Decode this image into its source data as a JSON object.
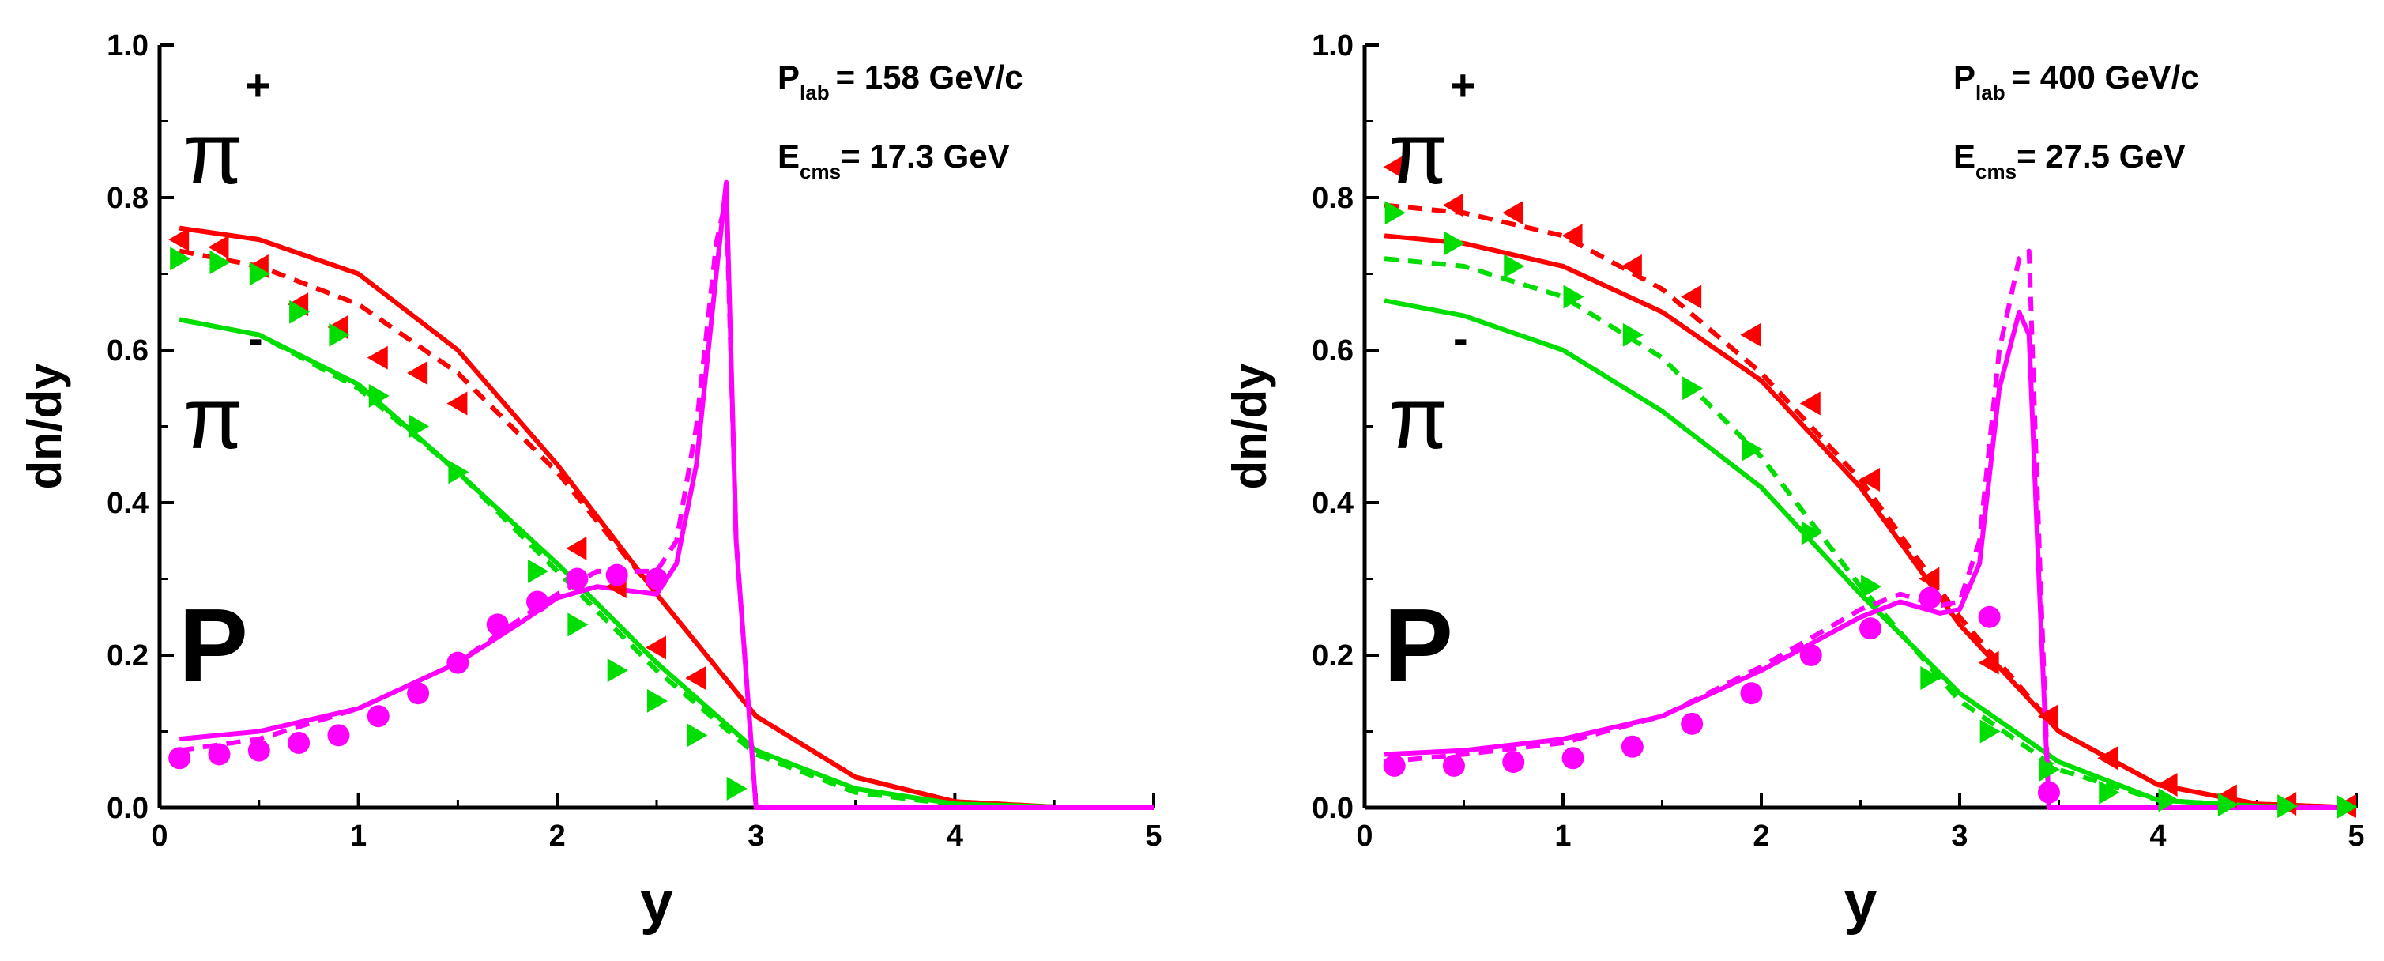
{
  "chart_data": [
    {
      "type": "line",
      "xlabel": "y",
      "ylabel": "dn/dy",
      "xlim": [
        0,
        5
      ],
      "ylim": [
        0,
        1.0
      ],
      "xticks": [
        "0",
        "1",
        "2",
        "3",
        "4",
        "5"
      ],
      "yticks": [
        "0.0",
        "0.2",
        "0.4",
        "0.6",
        "0.8",
        "1.0"
      ],
      "annotation": {
        "p_main": "P",
        "p_sub": "lab",
        "p_value": "= 158 GeV/c",
        "e_main": "E",
        "e_sub": "cms",
        "e_value": "= 17.3 GeV"
      },
      "labels": {
        "pi": "π",
        "plus": "+",
        "minus": "-",
        "proton": "P"
      },
      "series": [
        {
          "name": "π+ model (solid)",
          "color": "#ff0000",
          "style": "solid",
          "x": [
            0.1,
            0.5,
            1.0,
            1.5,
            2.0,
            2.5,
            3.0,
            3.5,
            4.0,
            4.5,
            5.0
          ],
          "y": [
            0.76,
            0.745,
            0.7,
            0.6,
            0.45,
            0.28,
            0.12,
            0.04,
            0.008,
            0.001,
            0.0
          ]
        },
        {
          "name": "π+ model (dashed)",
          "color": "#ff0000",
          "style": "dashed",
          "x": [
            0.1,
            0.5,
            1.0,
            1.5,
            2.0,
            2.5,
            3.0,
            3.5,
            4.0,
            4.5,
            5.0
          ],
          "y": [
            0.73,
            0.71,
            0.66,
            0.57,
            0.44,
            0.28,
            0.12,
            0.04,
            0.008,
            0.001,
            0.0
          ]
        },
        {
          "name": "π- model (solid)",
          "color": "#00dd00",
          "style": "solid",
          "x": [
            0.1,
            0.5,
            1.0,
            1.5,
            2.0,
            2.5,
            3.0,
            3.5,
            4.0,
            4.5,
            5.0
          ],
          "y": [
            0.64,
            0.62,
            0.555,
            0.44,
            0.32,
            0.19,
            0.075,
            0.025,
            0.005,
            0.001,
            0.0
          ]
        },
        {
          "name": "π- model (dashed)",
          "color": "#00dd00",
          "style": "dashed",
          "x": [
            0.1,
            0.5,
            1.0,
            1.5,
            2.0,
            2.5,
            3.0,
            3.5,
            4.0,
            4.5,
            5.0
          ],
          "y": [
            0.64,
            0.62,
            0.55,
            0.44,
            0.31,
            0.18,
            0.07,
            0.02,
            0.004,
            0.001,
            0.0
          ]
        },
        {
          "name": "P model (solid)",
          "color": "#ff00ff",
          "style": "solid",
          "x": [
            0.1,
            0.5,
            1.0,
            1.5,
            1.8,
            2.0,
            2.2,
            2.5,
            2.6,
            2.7,
            2.8,
            2.85,
            2.9,
            3.0,
            3.5,
            4.0,
            5.0
          ],
          "y": [
            0.09,
            0.1,
            0.13,
            0.19,
            0.24,
            0.275,
            0.29,
            0.28,
            0.32,
            0.45,
            0.7,
            0.82,
            0.35,
            0.0,
            0.0,
            0.0,
            0.0
          ]
        },
        {
          "name": "P model (dashed)",
          "color": "#ff00ff",
          "style": "dashed",
          "x": [
            0.1,
            0.5,
            1.0,
            1.5,
            1.8,
            2.0,
            2.2,
            2.5,
            2.6,
            2.7,
            2.8,
            2.85,
            2.9,
            3.0,
            3.5,
            4.0,
            5.0
          ],
          "y": [
            0.075,
            0.09,
            0.13,
            0.19,
            0.245,
            0.28,
            0.31,
            0.31,
            0.35,
            0.5,
            0.74,
            0.8,
            0.35,
            0.0,
            0.0,
            0.0,
            0.0
          ]
        },
        {
          "name": "π+ data",
          "color": "#ff0000",
          "marker": "triangle-left",
          "x": [
            0.1,
            0.3,
            0.5,
            0.7,
            0.9,
            1.1,
            1.3,
            1.5,
            2.1,
            2.3,
            2.5,
            2.7
          ],
          "y": [
            0.745,
            0.735,
            0.71,
            0.66,
            0.63,
            0.59,
            0.57,
            0.53,
            0.34,
            0.29,
            0.21,
            0.17
          ]
        },
        {
          "name": "π- data",
          "color": "#00dd00",
          "marker": "triangle-right",
          "x": [
            0.1,
            0.3,
            0.5,
            0.7,
            0.9,
            1.1,
            1.3,
            1.5,
            1.9,
            2.1,
            2.3,
            2.5,
            2.7,
            2.9
          ],
          "y": [
            0.72,
            0.715,
            0.7,
            0.65,
            0.62,
            0.54,
            0.5,
            0.44,
            0.31,
            0.24,
            0.18,
            0.14,
            0.095,
            0.025
          ]
        },
        {
          "name": "P data",
          "color": "#ff00ff",
          "marker": "circle",
          "x": [
            0.1,
            0.3,
            0.5,
            0.7,
            0.9,
            1.1,
            1.3,
            1.5,
            1.7,
            1.9,
            2.1,
            2.3,
            2.5
          ],
          "y": [
            0.065,
            0.07,
            0.075,
            0.085,
            0.095,
            0.12,
            0.15,
            0.19,
            0.24,
            0.27,
            0.3,
            0.305,
            0.3
          ]
        }
      ]
    },
    {
      "type": "line",
      "xlabel": "y",
      "ylabel": "dn/dy",
      "xlim": [
        0,
        5
      ],
      "ylim": [
        0,
        1.0
      ],
      "xticks": [
        "0",
        "1",
        "2",
        "3",
        "4",
        "5"
      ],
      "yticks": [
        "0.0",
        "0.2",
        "0.4",
        "0.6",
        "0.8",
        "1.0"
      ],
      "annotation": {
        "p_main": "P",
        "p_sub": "lab",
        "p_value": "= 400 GeV/c",
        "e_main": "E",
        "e_sub": "cms",
        "e_value": "= 27.5 GeV"
      },
      "labels": {
        "pi": "π",
        "plus": "+",
        "minus": "-",
        "proton": "P"
      },
      "series": [
        {
          "name": "π+ model (solid)",
          "color": "#ff0000",
          "style": "solid",
          "x": [
            0.1,
            0.5,
            1.0,
            1.5,
            2.0,
            2.5,
            3.0,
            3.5,
            4.0,
            4.5,
            5.0
          ],
          "y": [
            0.75,
            0.74,
            0.71,
            0.65,
            0.56,
            0.42,
            0.24,
            0.1,
            0.03,
            0.005,
            0.0
          ]
        },
        {
          "name": "π+ model (dashed)",
          "color": "#ff0000",
          "style": "dashed",
          "x": [
            0.1,
            0.5,
            1.0,
            1.5,
            2.0,
            2.5,
            3.0,
            3.5,
            4.0,
            4.5,
            5.0
          ],
          "y": [
            0.79,
            0.78,
            0.75,
            0.68,
            0.57,
            0.43,
            0.25,
            0.1,
            0.03,
            0.005,
            0.0
          ]
        },
        {
          "name": "π- model (solid)",
          "color": "#00dd00",
          "style": "solid",
          "x": [
            0.1,
            0.5,
            1.0,
            1.5,
            2.0,
            2.5,
            3.0,
            3.5,
            4.0,
            4.5,
            5.0
          ],
          "y": [
            0.665,
            0.645,
            0.6,
            0.52,
            0.42,
            0.28,
            0.15,
            0.06,
            0.01,
            0.002,
            0.0
          ]
        },
        {
          "name": "π- model (dashed)",
          "color": "#00dd00",
          "style": "dashed",
          "x": [
            0.1,
            0.5,
            1.0,
            1.5,
            2.0,
            2.5,
            3.0,
            3.5,
            4.0,
            4.5,
            5.0
          ],
          "y": [
            0.72,
            0.71,
            0.67,
            0.59,
            0.46,
            0.29,
            0.14,
            0.05,
            0.01,
            0.002,
            0.0
          ]
        },
        {
          "name": "P model (solid)",
          "color": "#ff00ff",
          "style": "solid",
          "x": [
            0.1,
            0.5,
            1.0,
            1.5,
            2.0,
            2.5,
            2.7,
            2.9,
            3.0,
            3.1,
            3.2,
            3.3,
            3.35,
            3.4,
            3.45,
            3.5,
            4.0,
            5.0
          ],
          "y": [
            0.07,
            0.075,
            0.09,
            0.12,
            0.18,
            0.25,
            0.27,
            0.255,
            0.26,
            0.32,
            0.55,
            0.65,
            0.62,
            0.3,
            0.0,
            0.0,
            0.0,
            0.0
          ]
        },
        {
          "name": "P model (dashed)",
          "color": "#ff00ff",
          "style": "dashed",
          "x": [
            0.1,
            0.5,
            1.0,
            1.5,
            2.0,
            2.5,
            2.7,
            2.9,
            3.0,
            3.1,
            3.2,
            3.3,
            3.35,
            3.4,
            3.45,
            3.5,
            4.0,
            5.0
          ],
          "y": [
            0.06,
            0.07,
            0.085,
            0.12,
            0.185,
            0.26,
            0.28,
            0.265,
            0.27,
            0.35,
            0.6,
            0.72,
            0.73,
            0.35,
            0.0,
            0.0,
            0.0,
            0.0
          ]
        },
        {
          "name": "π+ data",
          "color": "#ff0000",
          "marker": "triangle-left",
          "x": [
            0.15,
            0.45,
            0.75,
            1.05,
            1.35,
            1.65,
            1.95,
            2.25,
            2.55,
            2.85,
            3.15,
            3.45,
            3.75,
            4.05,
            4.35,
            4.65,
            4.95
          ],
          "y": [
            0.84,
            0.79,
            0.78,
            0.75,
            0.71,
            0.67,
            0.62,
            0.53,
            0.43,
            0.3,
            0.19,
            0.12,
            0.065,
            0.03,
            0.015,
            0.005,
            0.002
          ]
        },
        {
          "name": "π- data",
          "color": "#00dd00",
          "marker": "triangle-right",
          "x": [
            0.15,
            0.45,
            0.75,
            1.05,
            1.35,
            1.65,
            1.95,
            2.25,
            2.55,
            2.85,
            3.15,
            3.45,
            3.75,
            4.05,
            4.35,
            4.65,
            4.95
          ],
          "y": [
            0.78,
            0.74,
            0.71,
            0.67,
            0.62,
            0.55,
            0.47,
            0.36,
            0.29,
            0.17,
            0.1,
            0.05,
            0.02,
            0.01,
            0.004,
            0.002,
            0.001
          ]
        },
        {
          "name": "P data",
          "color": "#ff00ff",
          "marker": "circle",
          "x": [
            0.15,
            0.45,
            0.75,
            1.05,
            1.35,
            1.65,
            1.95,
            2.25,
            2.55,
            2.85,
            3.15,
            3.45
          ],
          "y": [
            0.055,
            0.055,
            0.06,
            0.065,
            0.08,
            0.11,
            0.15,
            0.2,
            0.235,
            0.275,
            0.25,
            0.02
          ]
        }
      ]
    }
  ]
}
